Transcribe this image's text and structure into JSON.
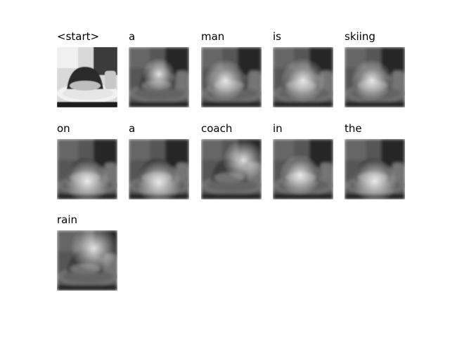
{
  "figure": {
    "panels": [
      {
        "word": "<start>",
        "attention": [
          0.5,
          0.5,
          0.0
        ]
      },
      {
        "word": "a",
        "attention": [
          0.5,
          0.45,
          0.55
        ]
      },
      {
        "word": "man",
        "attention": [
          0.4,
          0.55,
          0.7
        ]
      },
      {
        "word": "is",
        "attention": [
          0.5,
          0.55,
          0.75
        ]
      },
      {
        "word": "skiing",
        "attention": [
          0.45,
          0.55,
          0.7
        ]
      },
      {
        "word": "on",
        "attention": [
          0.5,
          0.7,
          0.75
        ]
      },
      {
        "word": "a",
        "attention": [
          0.5,
          0.72,
          0.75
        ]
      },
      {
        "word": "coach",
        "attention": [
          0.7,
          0.35,
          0.7
        ]
      },
      {
        "word": "in",
        "attention": [
          0.45,
          0.6,
          0.7
        ]
      },
      {
        "word": "the",
        "attention": [
          0.5,
          0.7,
          0.75
        ]
      },
      {
        "word": "rain",
        "attention": [
          0.62,
          0.3,
          0.8
        ]
      }
    ]
  }
}
